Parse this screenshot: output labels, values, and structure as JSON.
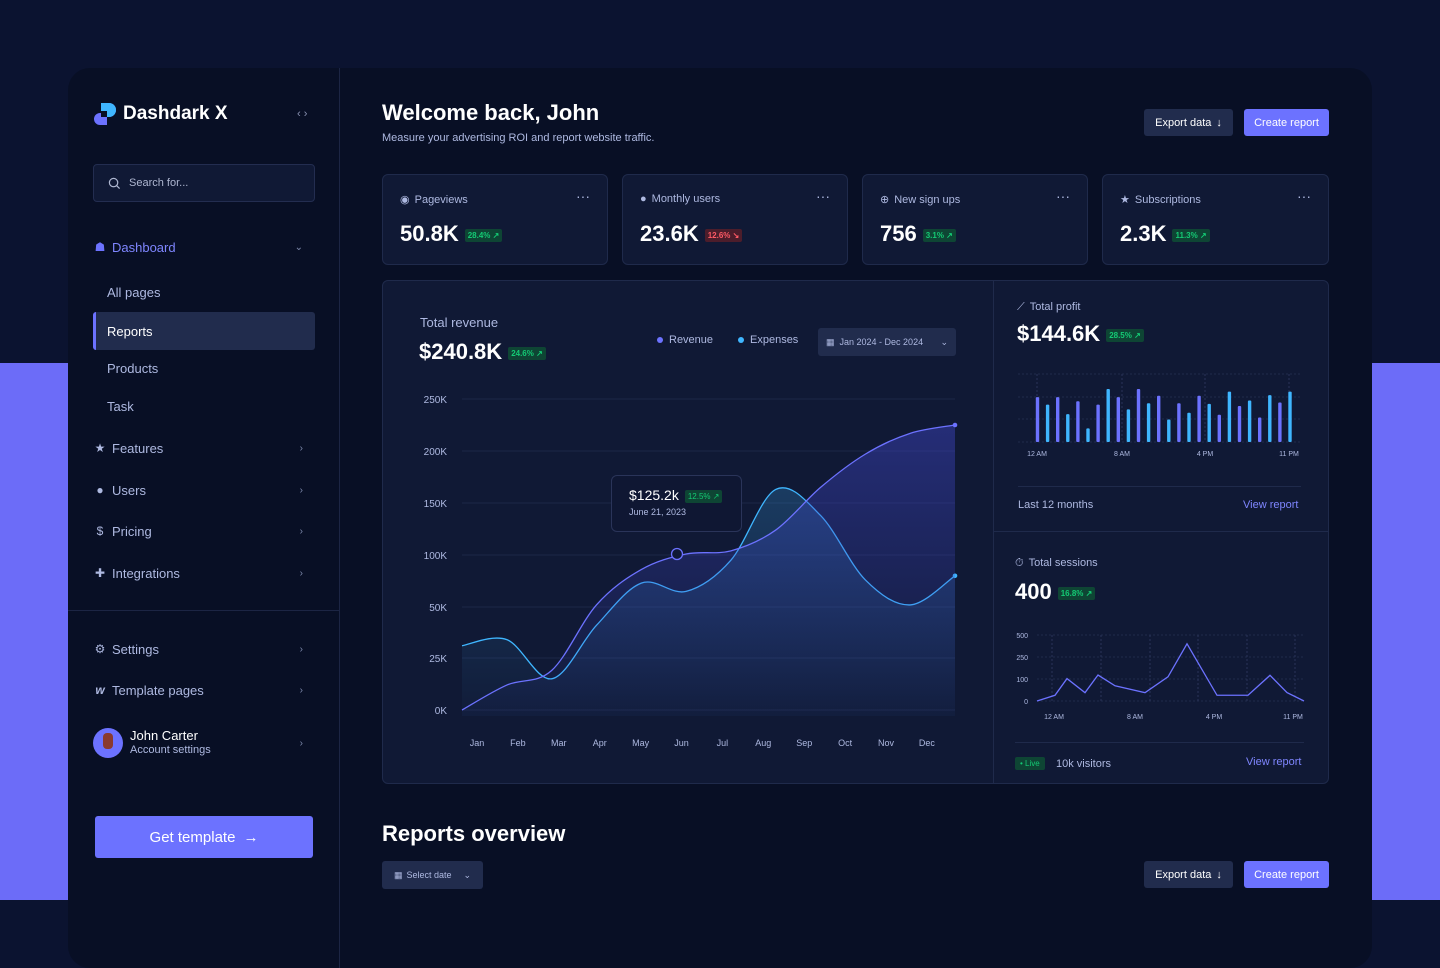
{
  "brand": {
    "name": "Dashdark X",
    "collapse_icon": "code-chevrons-icon"
  },
  "search": {
    "placeholder": "Search for..."
  },
  "sidebar": {
    "dashboard": {
      "label": "Dashboard",
      "icon": "home-icon"
    },
    "sub_items": [
      {
        "label": "All pages"
      },
      {
        "label": "Reports",
        "active": true
      },
      {
        "label": "Products"
      },
      {
        "label": "Task"
      }
    ],
    "items": [
      {
        "label": "Features",
        "icon": "star-icon"
      },
      {
        "label": "Users",
        "icon": "user-icon"
      },
      {
        "label": "Pricing",
        "icon": "dollar-icon"
      },
      {
        "label": "Integrations",
        "icon": "puzzle-icon"
      }
    ],
    "bottom_items": [
      {
        "label": "Settings",
        "icon": "gear-icon"
      },
      {
        "label": "Template pages",
        "icon": "webflow-icon"
      }
    ],
    "user": {
      "name": "John Carter",
      "subtitle": "Account settings"
    },
    "cta": "Get template"
  },
  "header": {
    "title": "Welcome back, John",
    "subtitle": "Measure your advertising ROI and report website traffic.",
    "export": "Export data",
    "create": "Create report"
  },
  "kpis": [
    {
      "label": "Pageviews",
      "icon": "eye-icon",
      "value": "50.8K",
      "change": "28.4%",
      "trend": "up"
    },
    {
      "label": "Monthly users",
      "icon": "user-icon",
      "value": "23.6K",
      "change": "12.6%",
      "trend": "down"
    },
    {
      "label": "New sign ups",
      "icon": "plus-circle-icon",
      "value": "756",
      "change": "3.1%",
      "trend": "up"
    },
    {
      "label": "Subscriptions",
      "icon": "star-icon",
      "value": "2.3K",
      "change": "11.3%",
      "trend": "up"
    }
  ],
  "revenue": {
    "title": "Total revenue",
    "value": "$240.8K",
    "change": "24.6%",
    "date_range": "Jan 2024 - Dec 2024",
    "tooltip": {
      "value": "$125.2k",
      "change": "12.5%",
      "date": "June 21, 2023"
    }
  },
  "profit": {
    "title": "Total profit",
    "value": "$144.6K",
    "change": "28.5%",
    "footer": "Last 12 months",
    "link": "View report"
  },
  "sessions": {
    "title": "Total sessions",
    "value": "400",
    "change": "16.8%",
    "live": "Live",
    "visitors": "10k visitors",
    "link": "View report"
  },
  "reports": {
    "title": "Reports overview",
    "select": "Select date",
    "export": "Export data",
    "create": "Create report"
  },
  "chart_data": [
    {
      "type": "area",
      "ylabels": [
        "0K",
        "25K",
        "50K",
        "100K",
        "150K",
        "200K",
        "250K"
      ],
      "yticks": [
        0,
        25000,
        50000,
        100000,
        150000,
        200000,
        250000
      ],
      "categories": [
        "Jan",
        "Feb",
        "Mar",
        "Apr",
        "May",
        "Jun",
        "Jul",
        "Aug",
        "Sep",
        "Oct",
        "Nov",
        "Dec"
      ],
      "series": [
        {
          "name": "Revenue",
          "color": "#6c72ff",
          "values": [
            0,
            12000,
            19000,
            52000,
            86000,
            101000,
            104000,
            124000,
            165000,
            197000,
            217000,
            225000
          ]
        },
        {
          "name": "Expenses",
          "color": "#3fb6ff",
          "values": [
            31000,
            34000,
            15000,
            41000,
            73000,
            65000,
            95000,
            163000,
            138000,
            76000,
            52000,
            80000
          ]
        }
      ],
      "grid": true,
      "legend": "top-right"
    },
    {
      "type": "bar",
      "xlabels": [
        "12 AM",
        "8 AM",
        "4 PM",
        "11 PM"
      ],
      "colors": [
        "#6c72ff",
        "#3fb6ff"
      ],
      "values": [
        66,
        55,
        66,
        41,
        60,
        20,
        55,
        78,
        66,
        48,
        78,
        57,
        68,
        33,
        57,
        43,
        68,
        56,
        40,
        74,
        53,
        61,
        36,
        69,
        58,
        74
      ],
      "grid": true
    },
    {
      "type": "line",
      "xlabels": [
        "12 AM",
        "8 AM",
        "4 PM",
        "11 PM"
      ],
      "ylabels": [
        "500",
        "250",
        "100",
        "0"
      ],
      "yticks": [
        0,
        100,
        250,
        500
      ],
      "color": "#6c72ff",
      "values": [
        0,
        26,
        103,
        38,
        127,
        69,
        38,
        115,
        400,
        26,
        26,
        125,
        38,
        0
      ],
      "grid": true
    }
  ]
}
